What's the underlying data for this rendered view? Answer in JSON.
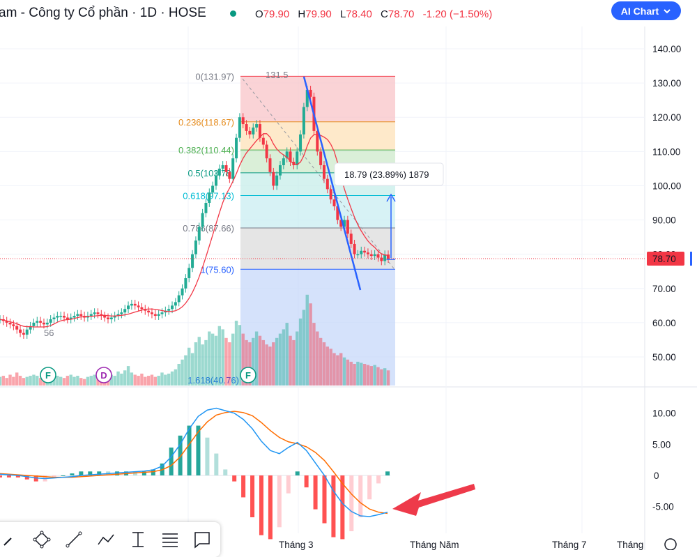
{
  "header": {
    "title": "am - Công ty Cổ phần · 1D · HOSE",
    "ohlc": [
      {
        "k": "O",
        "v": "79.90"
      },
      {
        "k": "H",
        "v": "79.90"
      },
      {
        "k": "L",
        "v": "78.40"
      },
      {
        "k": "C",
        "v": "78.70"
      }
    ],
    "change": "-1.20 (−1.50%)",
    "ai_button": "AI Chart"
  },
  "colors": {
    "up": "#22ab94",
    "down": "#f23645",
    "ma": "#f23645",
    "macd": "#2196f3",
    "signal": "#ff6d00",
    "trend": "#2962ff",
    "arrow": "#ee3a4a"
  },
  "chart_data": [
    {
      "type": "candlestick",
      "title": "",
      "y_axis_ticks": [
        "140.00",
        "130.00",
        "120.00",
        "110.00",
        "100.00",
        "90.00",
        "80.00",
        "70.00",
        "60.00",
        "50.00"
      ],
      "ylim": [
        44,
        145
      ],
      "last_price_label": "78.70",
      "x_axis_ticks": [
        "Tháng 3",
        "Tháng Năm",
        "Tháng 7",
        "Tháng"
      ],
      "annotations": [
        "56",
        "131.5"
      ],
      "event_markers": [
        "F",
        "D",
        "F"
      ],
      "closes": [
        61,
        60.5,
        60,
        59.5,
        59,
        58,
        57,
        56.5,
        58,
        59,
        60,
        60.5,
        60,
        59.5,
        60,
        61,
        61.5,
        62,
        62,
        61.5,
        61,
        61.5,
        62,
        62.5,
        62,
        61.5,
        62,
        62.5,
        63,
        62.5,
        62,
        61.5,
        61,
        61.5,
        62,
        62.5,
        63,
        64,
        65,
        65.5,
        65,
        64.5,
        64,
        63.5,
        63,
        62.5,
        62,
        62.5,
        63,
        63.5,
        64,
        65,
        66,
        68,
        70,
        73,
        76,
        80,
        84,
        88,
        92,
        95,
        98,
        100,
        103,
        105,
        106,
        104,
        102,
        108,
        114,
        120,
        118,
        116,
        115,
        117,
        118,
        114,
        112,
        108,
        104,
        100,
        103,
        106,
        108,
        110,
        107,
        106,
        110,
        115,
        123,
        128,
        126,
        116,
        110,
        106,
        102,
        99,
        96,
        94,
        90,
        88,
        90,
        86,
        83,
        80,
        80,
        81,
        80.5,
        80,
        79.5,
        80,
        79,
        78,
        79.9,
        78.7
      ],
      "volume_note": "volume bars (relative heights)",
      "volume": [
        8,
        9,
        7,
        10,
        8,
        12,
        9,
        7,
        8,
        9,
        10,
        9,
        7,
        8,
        9,
        11,
        10,
        9,
        8,
        7,
        9,
        10,
        8,
        9,
        7,
        6,
        8,
        9,
        10,
        11,
        9,
        8,
        12,
        10,
        9,
        13,
        11,
        14,
        18,
        12,
        10,
        9,
        11,
        8,
        9,
        10,
        8,
        9,
        12,
        10,
        11,
        13,
        15,
        20,
        24,
        28,
        35,
        30,
        40,
        45,
        38,
        42,
        50,
        48,
        46,
        55,
        52,
        44,
        40,
        48,
        60,
        56,
        48,
        42,
        40,
        44,
        50,
        46,
        42,
        38,
        36,
        40,
        44,
        48,
        52,
        58,
        46,
        42,
        50,
        62,
        70,
        84,
        76,
        58,
        50,
        44,
        40,
        36,
        34,
        30,
        28,
        30,
        26,
        24,
        22,
        20,
        22,
        21,
        20,
        19,
        18,
        19,
        17,
        15,
        16,
        14
      ],
      "fibonacci": [
        {
          "ratio": "0(131.97)",
          "price": 131.97
        },
        {
          "ratio": "0.236(118.67)",
          "price": 118.67
        },
        {
          "ratio": "0.382(110.44)",
          "price": 110.44
        },
        {
          "ratio": "0.5(103.78)",
          "price": 103.78
        },
        {
          "ratio": "0.618(97.13)",
          "price": 97.13
        },
        {
          "ratio": "0.786(87.66)",
          "price": 87.66
        },
        {
          "ratio": "1(75.60)",
          "price": 75.6
        },
        {
          "ratio": "1.618(40.76)",
          "price": 40.76
        }
      ],
      "measure_label": "18.79 (23.89%) 1879"
    },
    {
      "type": "line",
      "name": "MACD",
      "y_axis_ticks": [
        "10.00",
        "5.00",
        "0",
        "-5.00"
      ],
      "ylim": [
        -7,
        12
      ],
      "macd": [
        0.2,
        0.1,
        0,
        -0.2,
        -0.4,
        -0.5,
        -0.4,
        -0.3,
        -0.2,
        0,
        0.1,
        0.2,
        0.3,
        0.4,
        0.5,
        0.6,
        0.7,
        0.9,
        1.5,
        3,
        5,
        7.5,
        9.5,
        10.5,
        10.8,
        10.4,
        10,
        9,
        7.5,
        5.5,
        4,
        3.5,
        4.5,
        5.3,
        4,
        2,
        0,
        -2.5,
        -4.5,
        -5.8,
        -6.5,
        -6.6,
        -6.3,
        -5.9
      ],
      "signal": [
        0.3,
        0.2,
        0.1,
        0,
        -0.1,
        -0.2,
        -0.3,
        -0.3,
        -0.3,
        -0.2,
        -0.1,
        0,
        0.1,
        0.2,
        0.3,
        0.4,
        0.5,
        0.6,
        0.9,
        1.6,
        3,
        5,
        7,
        8.6,
        9.7,
        10.1,
        10.3,
        10.1,
        9.6,
        8.5,
        7.2,
        6.1,
        5.4,
        5.1,
        4.6,
        3.7,
        2.4,
        0.6,
        -1.3,
        -3,
        -4.4,
        -5.4,
        -5.9,
        -6.1
      ]
    }
  ]
}
